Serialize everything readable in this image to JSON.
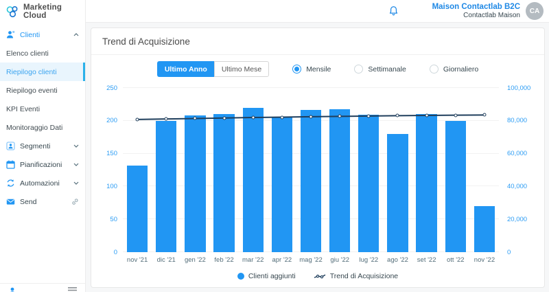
{
  "colors": {
    "accent": "#2196f3",
    "bar": "#2196f3",
    "trend_line": "#1f3e5c",
    "selected_nav_bg": "#e9f5fd",
    "logo_teal": "#26c6da",
    "logo_blue": "#1976d2"
  },
  "icons": {
    "logo": "marketing-cloud-logo-icon",
    "notifications": "bell-icon",
    "clienti": "user-icon",
    "segmenti": "segments-icon",
    "pianificazioni": "calendar-icon",
    "automazioni": "sync-icon",
    "send": "envelope-icon",
    "send_external": "link-icon",
    "bottom_menu": "menu-icon"
  },
  "sidebar": {
    "logo_text": "Marketing Cloud",
    "items": [
      {
        "label": "Clienti",
        "type": "parent",
        "state": "expanded-active"
      },
      {
        "label": "Elenco clienti",
        "type": "sub"
      },
      {
        "label": "Riepilogo clienti",
        "type": "sub",
        "state": "selected"
      },
      {
        "label": "Riepilogo eventi",
        "type": "sub"
      },
      {
        "label": "KPI Eventi",
        "type": "sub"
      },
      {
        "label": "Monitoraggio Dati",
        "type": "sub"
      },
      {
        "label": "Segmenti",
        "type": "parent",
        "state": "collapsed"
      },
      {
        "label": "Pianificazioni",
        "type": "parent",
        "state": "collapsed"
      },
      {
        "label": "Automazioni",
        "type": "parent",
        "state": "collapsed"
      },
      {
        "label": "Send",
        "type": "parent",
        "state": "external-link"
      }
    ]
  },
  "header": {
    "account_name": "Maison Contactlab B2C",
    "account_subtitle": "Contactlab Maison",
    "avatar_initials": "CA"
  },
  "chart_card": {
    "title": "Trend di Acquisizione",
    "range_buttons": [
      {
        "label": "Ultimo Anno",
        "active": true
      },
      {
        "label": "Ultimo Mese",
        "active": false
      }
    ],
    "frequency_options": [
      {
        "label": "Mensile",
        "selected": true
      },
      {
        "label": "Settimanale",
        "selected": false
      },
      {
        "label": "Giornaliero",
        "selected": false
      }
    ]
  },
  "chart_data": {
    "type": "bar",
    "title": "Trend di Acquisizione",
    "categories": [
      "nov '21",
      "dic '21",
      "gen '22",
      "feb '22",
      "mar '22",
      "apr '22",
      "mag '22",
      "giu '22",
      "lug '22",
      "ago '22",
      "set '22",
      "ott '22",
      "nov '22"
    ],
    "series": [
      {
        "name": "Clienti aggiunti",
        "type": "bar",
        "axis": "left",
        "color": "#2196f3",
        "values": [
          132,
          200,
          208,
          210,
          220,
          205,
          217,
          218,
          209,
          180,
          210,
          200,
          70
        ]
      },
      {
        "name": "Trend di Acquisizione",
        "type": "line",
        "axis": "right",
        "color": "#1f3e5c",
        "values": [
          80800,
          81100,
          81400,
          81700,
          82000,
          82200,
          82500,
          82700,
          82900,
          83100,
          83250,
          83400,
          83500
        ]
      }
    ],
    "y_left": {
      "min": 0,
      "max": 250,
      "ticks": [
        0,
        50,
        100,
        150,
        200,
        250
      ]
    },
    "y_right": {
      "min": 0,
      "max": 100000,
      "ticks": [
        0,
        20000,
        40000,
        60000,
        80000,
        100000
      ],
      "tick_labels": [
        "0",
        "20,000",
        "40,000",
        "60,000",
        "80,000",
        "100,000"
      ]
    },
    "grid": true,
    "legend": [
      "Clienti aggiunti",
      "Trend di Acquisizione"
    ],
    "legend_position": "bottom"
  }
}
